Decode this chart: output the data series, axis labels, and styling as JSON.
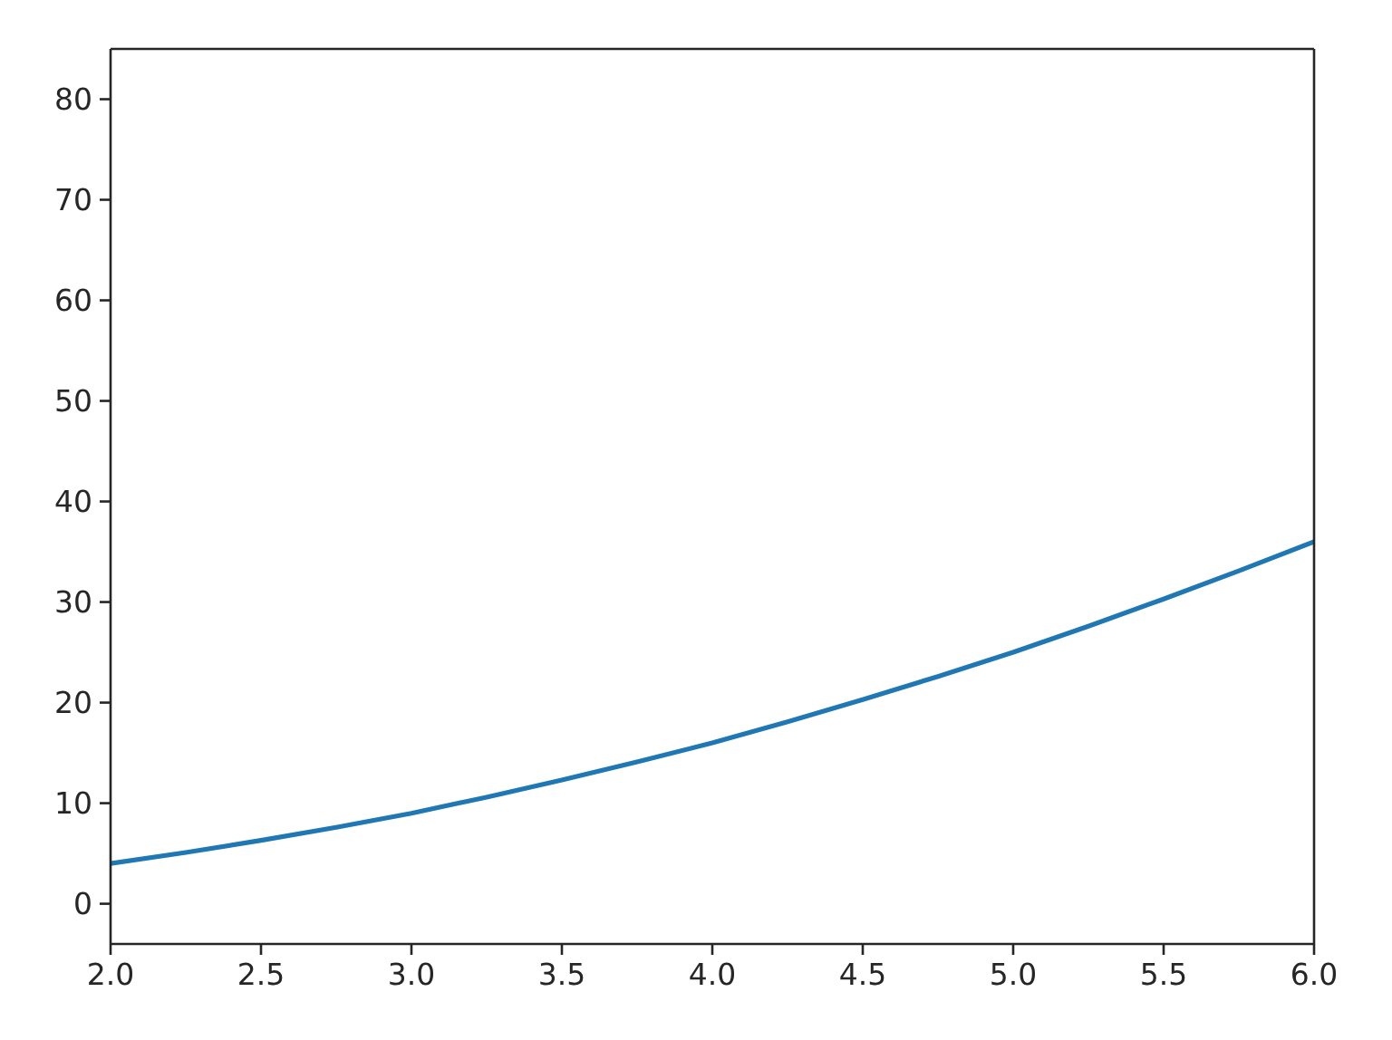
{
  "chart_data": {
    "type": "line",
    "x": [
      2,
      2.25,
      2.5,
      2.75,
      3,
      3.25,
      3.5,
      3.75,
      4,
      4.25,
      4.5,
      4.75,
      5,
      5.25,
      5.5,
      5.75,
      6
    ],
    "series": [
      {
        "color": "#1f77b4",
        "values": [
          4,
          5.1,
          6.3,
          7.6,
          9,
          10.6,
          12.3,
          14.1,
          16,
          18.1,
          20.3,
          22.6,
          25,
          27.6,
          30.3,
          33.1,
          36
        ]
      }
    ],
    "xlim": [
      2,
      6
    ],
    "ylim": [
      -4,
      85
    ],
    "xticks": [
      {
        "value": 2,
        "label": "2.0"
      },
      2.5,
      {
        "value": 3,
        "label": "3.0"
      },
      3.5,
      {
        "value": 4,
        "label": "4.0"
      },
      4.5,
      {
        "value": 5,
        "label": "5.0"
      },
      5.5,
      {
        "value": 6,
        "label": "6.0"
      }
    ],
    "yticks": [
      0,
      10,
      20,
      30,
      40,
      50,
      60,
      70,
      80
    ],
    "marker": "none",
    "line_style": "solid"
  }
}
